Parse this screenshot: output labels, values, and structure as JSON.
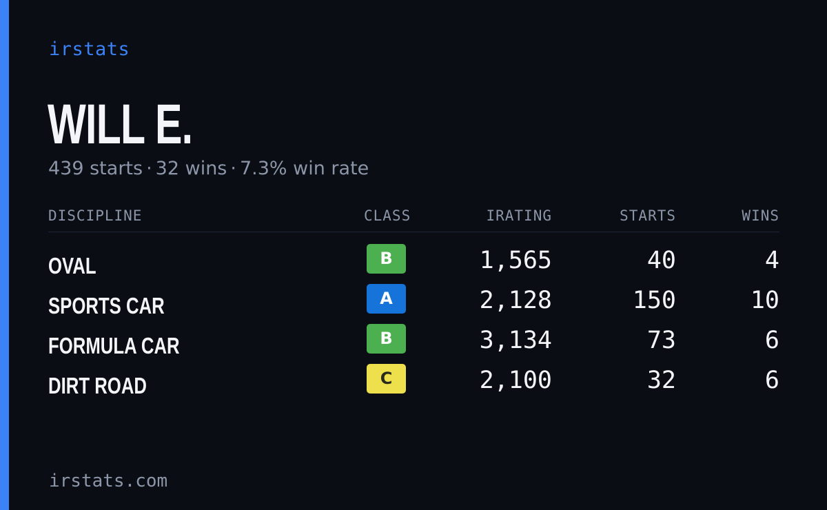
{
  "brand": "irstats",
  "driver": {
    "name": "WILL E.",
    "starts_text": "439 starts",
    "wins_text": "32 wins",
    "win_rate_text": "7.3% win rate",
    "separator": "·"
  },
  "table": {
    "headers": {
      "discipline": "DISCIPLINE",
      "class": "CLASS",
      "irating": "IRATING",
      "starts": "STARTS",
      "wins": "WINS"
    },
    "rows": [
      {
        "discipline": "OVAL",
        "class": "B",
        "class_color": "#4caf50",
        "class_text_color": "#ffffff",
        "irating": "1,565",
        "starts": "40",
        "wins": "4"
      },
      {
        "discipline": "SPORTS CAR",
        "class": "A",
        "class_color": "#1673d9",
        "class_text_color": "#ffffff",
        "irating": "2,128",
        "starts": "150",
        "wins": "10"
      },
      {
        "discipline": "FORMULA CAR",
        "class": "B",
        "class_color": "#4caf50",
        "class_text_color": "#ffffff",
        "irating": "3,134",
        "starts": "73",
        "wins": "6"
      },
      {
        "discipline": "DIRT ROAD",
        "class": "C",
        "class_color": "#ede04c",
        "class_text_color": "#2a2a1a",
        "irating": "2,100",
        "starts": "32",
        "wins": "6"
      }
    ]
  },
  "footer": "irstats.com",
  "colors": {
    "background": "#0a0d14",
    "accent": "#3b82f6",
    "muted_text": "#8c96a8",
    "primary_text": "#f4f5f9"
  }
}
